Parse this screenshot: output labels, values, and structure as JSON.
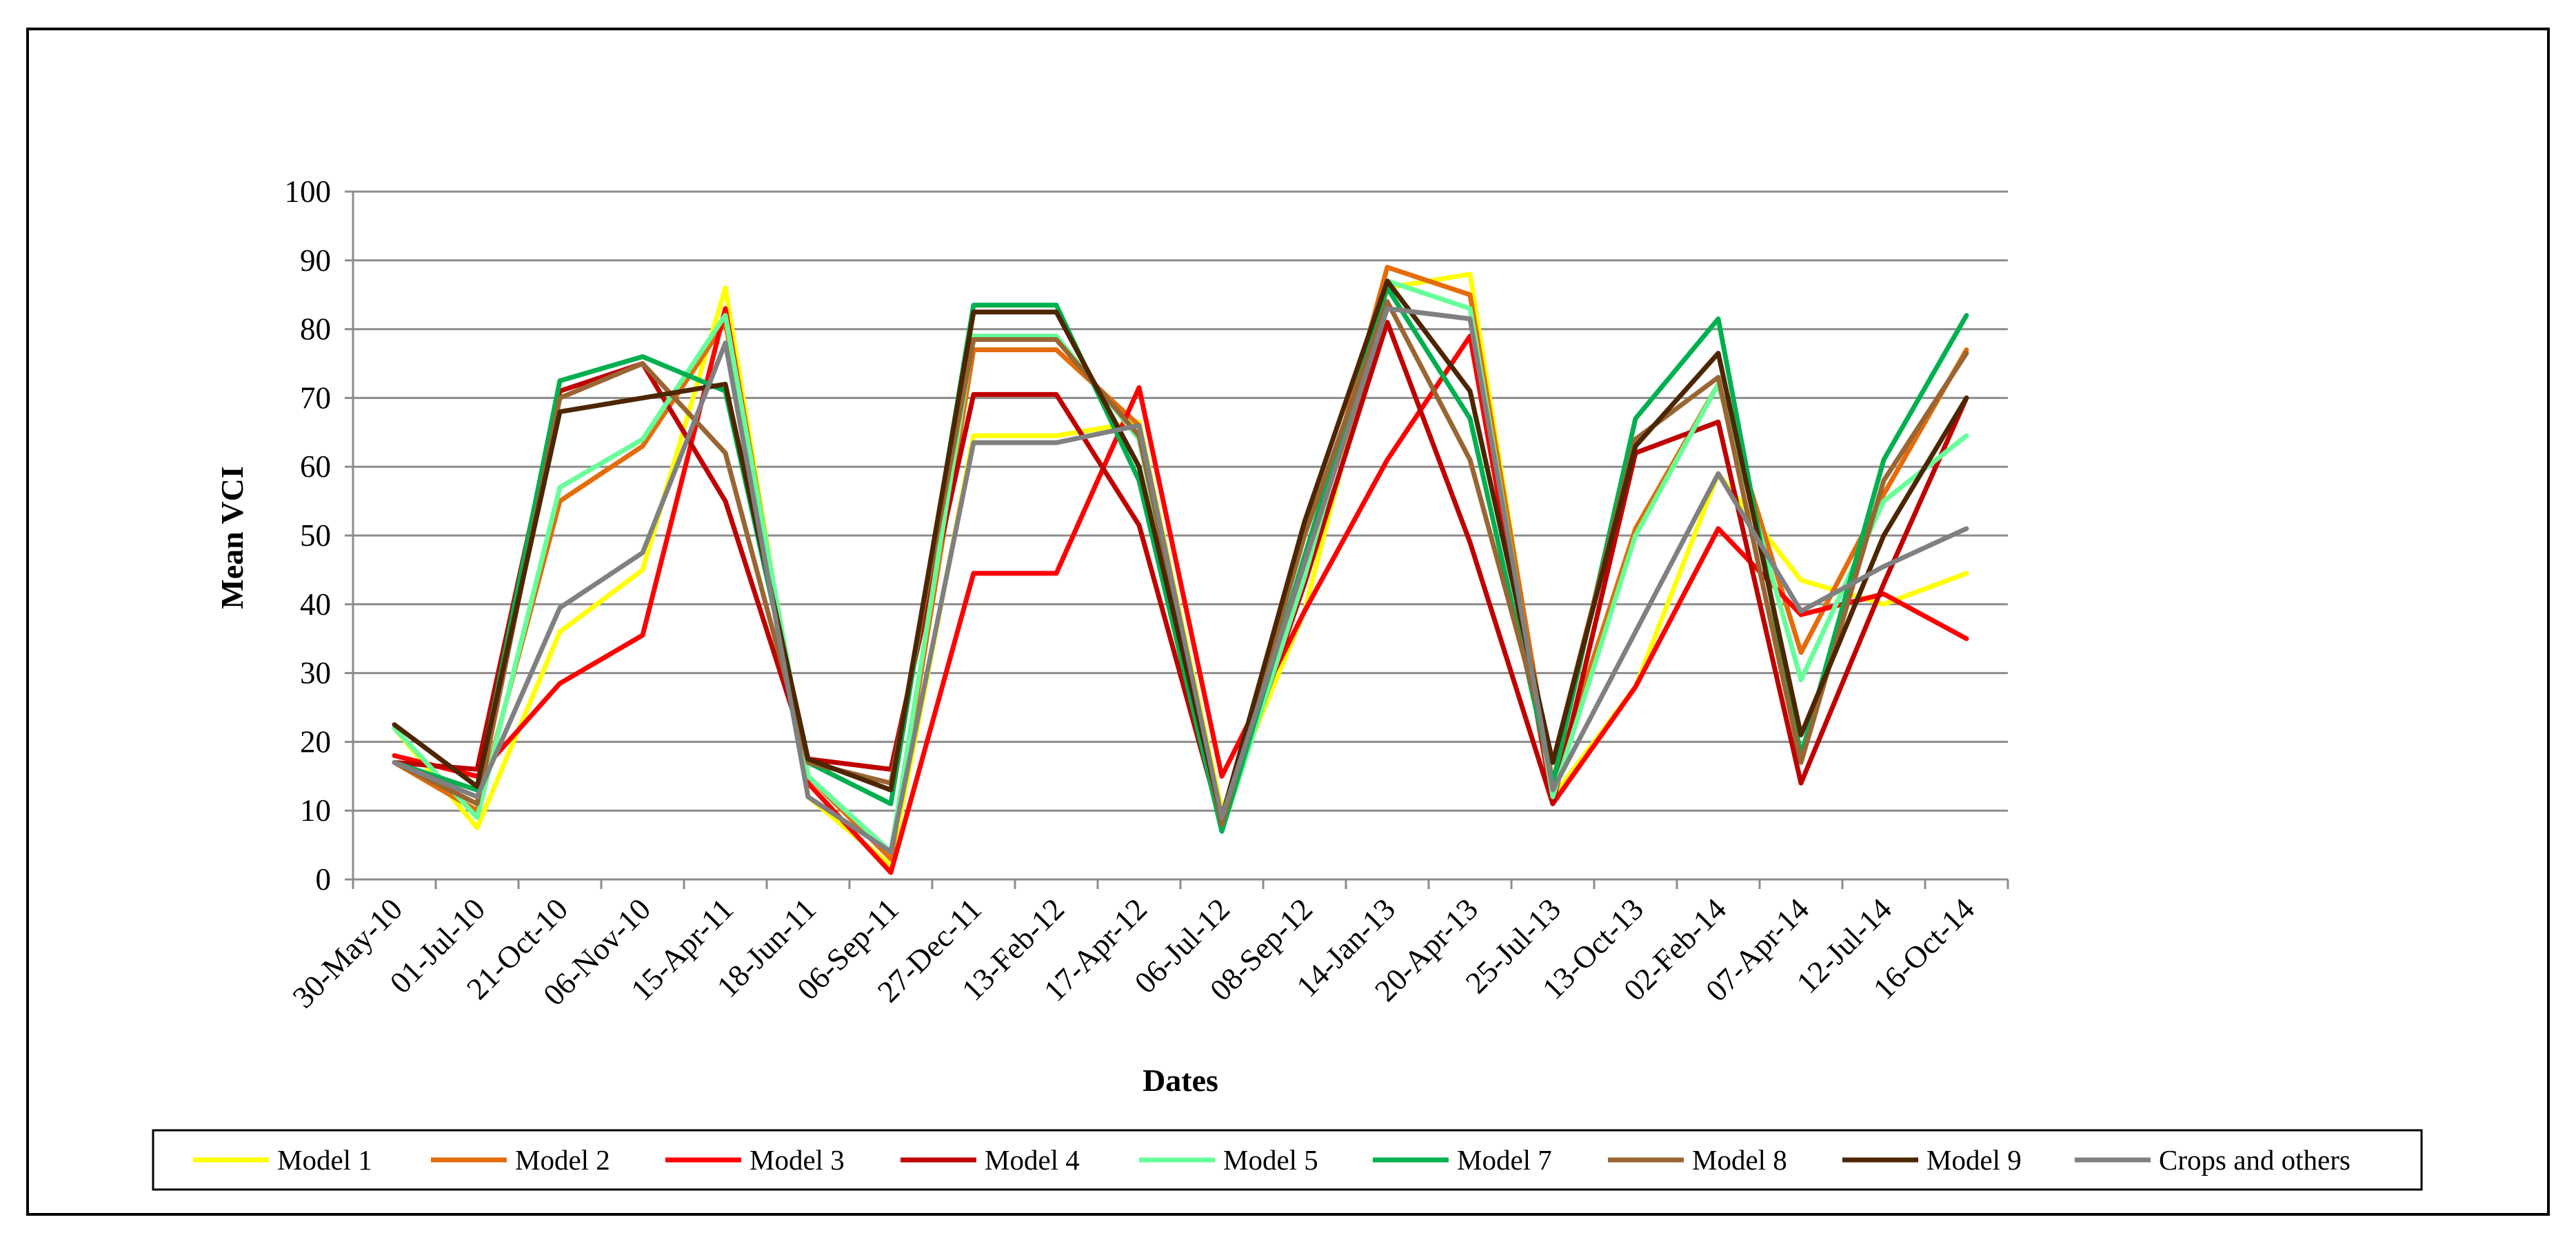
{
  "chart_data": {
    "type": "line",
    "title": "",
    "xlabel": "Dates",
    "ylabel": "Mean VCI",
    "ylim": [
      0,
      100
    ],
    "yticks": [
      0,
      10,
      20,
      30,
      40,
      50,
      60,
      70,
      80,
      90,
      100
    ],
    "grid": "horizontal",
    "legend_position": "bottom",
    "categories": [
      "30-May-10",
      "01-Jul-10",
      "21-Oct-10",
      "06-Nov-10",
      "15-Apr-11",
      "18-Jun-11",
      "06-Sep-11",
      "27-Dec-11",
      "13-Feb-12",
      "17-Apr-12",
      "06-Jul-12",
      "08-Sep-12",
      "14-Jan-13",
      "20-Apr-13",
      "25-Jul-13",
      "13-Oct-13",
      "02-Feb-14",
      "07-Apr-14",
      "12-Jul-14",
      "16-Oct-14"
    ],
    "series": [
      {
        "name": "Model 1",
        "color": "#FFFF00",
        "values": [
          22,
          7.5,
          36,
          45,
          86,
          12,
          2,
          64.5,
          64.5,
          66.5,
          10,
          39,
          86,
          88,
          12,
          28,
          59,
          43.5,
          40,
          44.5
        ]
      },
      {
        "name": "Model 2",
        "color": "#E46C0A",
        "values": [
          17,
          10,
          55,
          63,
          81,
          15,
          3,
          77,
          77,
          66,
          8,
          45,
          89,
          85,
          14,
          51,
          72,
          33,
          56,
          77
        ]
      },
      {
        "name": "Model 3",
        "color": "#FF0000",
        "values": [
          18,
          15,
          28.5,
          35.5,
          83,
          14,
          1,
          44.5,
          44.5,
          71.5,
          15,
          39,
          61,
          79,
          11,
          28,
          51,
          38.5,
          41.5,
          35
        ]
      },
      {
        "name": "Model 4",
        "color": "#C00000",
        "values": [
          17,
          16,
          71,
          75,
          55,
          17.5,
          16,
          70.5,
          70.5,
          51.5,
          8,
          43,
          81,
          49,
          11,
          62,
          66.5,
          14,
          43,
          70
        ]
      },
      {
        "name": "Model 5",
        "color": "#66FF99",
        "values": [
          22,
          9,
          57,
          64,
          82,
          15,
          4,
          79,
          79,
          64,
          7,
          44,
          87,
          83,
          12,
          50,
          72,
          29,
          55,
          64.5
        ]
      },
      {
        "name": "Model 7",
        "color": "#00B050",
        "values": [
          17,
          13,
          72.5,
          76,
          71,
          17,
          11,
          83.5,
          83.5,
          58,
          7,
          47,
          86,
          67,
          14,
          67,
          81.5,
          18,
          61,
          82
        ]
      },
      {
        "name": "Model 8",
        "color": "#996633",
        "values": [
          17,
          11,
          70,
          75,
          62,
          17,
          14,
          78.5,
          78.5,
          64.5,
          8,
          50,
          84,
          61,
          17,
          64,
          73,
          17,
          58,
          76.5
        ]
      },
      {
        "name": "Model 9",
        "color": "#4D2600",
        "values": [
          22.5,
          13.5,
          68,
          70,
          72,
          17.5,
          13,
          82.5,
          82.5,
          60,
          9,
          52,
          87,
          71,
          17,
          63,
          76.5,
          21,
          50,
          70
        ]
      },
      {
        "name": "Crops and others",
        "color": "#808080",
        "values": [
          17,
          12,
          39.5,
          47.5,
          78,
          12,
          4,
          63.5,
          63.5,
          66,
          9,
          46,
          83,
          81.5,
          13,
          36,
          59,
          39,
          45.5,
          51
        ]
      }
    ]
  }
}
